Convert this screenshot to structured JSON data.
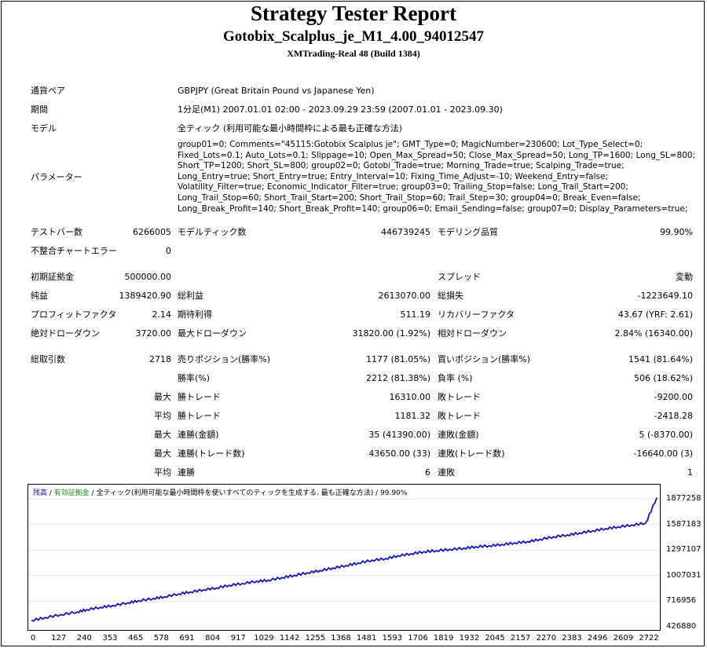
{
  "report": {
    "title": "Strategy Tester Report",
    "subtitle": "Gotobix_Scalplus_je_M1_4.00_94012547",
    "server": "XMTrading-Real 48 (Build 1384)"
  },
  "info": {
    "symbol_label": "通貨ペア",
    "symbol_value": "GBPJPY (Great Britain Pound vs Japanese Yen)",
    "period_label": "期間",
    "period_value": "1分足(M1) 2007.01.01 02:00 - 2023.09.29 23:59 (2007.01.01 - 2023.09.30)",
    "model_label": "モデル",
    "model_value": "全ティック (利用可能な最小時間枠による最も正確な方法)",
    "params_label": "パラメーター",
    "params_value": "group01=0; Comments=\"45115:Gotobix Scalplus je\"; GMT_Type=0; MagicNumber=230600; Lot_Type_Select=0; Fixed_Lots=0.1; Auto_Lots=0.1; Slippage=10; Open_Max_Spread=50; Close_Max_Spread=50; Long_TP=1600; Long_SL=800; Short_TP=1200; Short_SL=800; group02=0; Gotobi_Trade=true; Morning_Trade=true; Scalping_Trade=true; Long_Entry=true; Short_Entry=true; Entry_Interval=10; Fixing_Time_Adjust=-10; Weekend_Entry=false; Volatility_Filter=true; Economic_Indicator_Filter=true; group03=0; Trailing_Stop=false; Long_Trail_Start=200; Long_Trail_Stop=60; Short_Trail_Start=200; Short_Trail_Stop=60; Trail_Step=30; group04=0; Break_Even=false; Long_Break_Profit=140; Short_Break_Profit=140; group06=0; Email_Sending=false; group07=0; Display_Parameters=true;"
  },
  "stats": {
    "bars_label": "テストバー数",
    "bars_value": "6266005",
    "ticks_label": "モデルティック数",
    "ticks_value": "446739245",
    "quality_label": "モデリング品質",
    "quality_value": "99.90%",
    "mismatch_label": "不整合チャートエラー",
    "mismatch_value": "0",
    "deposit_label": "初期証拠金",
    "deposit_value": "500000.00",
    "spread_label": "スプレッド",
    "spread_value": "変動",
    "netprofit_label": "純益",
    "netprofit_value": "1389420.90",
    "grossprofit_label": "総利益",
    "grossprofit_value": "2613070.00",
    "grossloss_label": "総損失",
    "grossloss_value": "-1223649.10",
    "pf_label": "プロフィットファクタ",
    "pf_value": "2.14",
    "expected_label": "期待利得",
    "expected_value": "511.19",
    "recovery_label": "リカバリーファクタ",
    "recovery_value": "43.67 (YRF: 2.61)",
    "absdd_label": "絶対ドローダウン",
    "absdd_value": "3720.00",
    "maxdd_label": "最大ドローダウン",
    "maxdd_value": "31820.00 (1.92%)",
    "reldd_label": "相対ドローダウン",
    "reldd_value": "2.84% (16340.00)",
    "trades_label": "総取引数",
    "trades_value": "2718",
    "short_label": "売りポジション(勝率%)",
    "short_value": "1177 (81.05%)",
    "long_label": "買いポジション(勝率%)",
    "long_value": "1541 (81.64%)",
    "winrate_label": "勝率(%)",
    "winrate_value": "2212 (81.38%)",
    "lossrate_label": "負率 (%)",
    "lossrate_value": "506 (18.62%)",
    "max_label": "最大",
    "avg_label": "平均",
    "win_trade_label": "勝トレード",
    "loss_trade_label": "敗トレード",
    "largest_win_value": "16310.00",
    "largest_loss_value": "-9200.00",
    "avg_win_value": "1181.32",
    "avg_loss_value": "-2418.28",
    "consec_wins_amount_label": "連勝(金額)",
    "consec_wins_amount_value": "35 (41390.00)",
    "consec_losses_amount_label": "連敗(金額)",
    "consec_losses_amount_value": "5 (-8370.00)",
    "consec_profit_label": "連勝(トレード数)",
    "consec_profit_value": "43650.00 (33)",
    "consec_loss_label": "連敗(トレード数)",
    "consec_loss_value": "-16640.00 (3)",
    "avg_consec_wins_label": "連勝",
    "avg_consec_wins_value": "6",
    "avg_consec_losses_label": "連敗",
    "avg_consec_losses_value": "1"
  },
  "chart_data": {
    "type": "line",
    "legend": {
      "balance": "残高",
      "sep1": " / ",
      "equity": "有効証拠金",
      "sep2": " / ",
      "model": "全ティック(利用可能な最小時間枠を使いすべてのティックを生成する. 最も正確な方法)",
      "quality": " / 99.90%"
    },
    "line_color": "#1414b4",
    "x_ticks": [
      "0",
      "127",
      "240",
      "353",
      "465",
      "578",
      "691",
      "804",
      "917",
      "1029",
      "1142",
      "1255",
      "1368",
      "1481",
      "1593",
      "1706",
      "1819",
      "1932",
      "2045",
      "2157",
      "2270",
      "2383",
      "2496",
      "2609",
      "2722"
    ],
    "y_ticks": [
      "1877258",
      "1587183",
      "1297107",
      "1007031",
      "716956",
      "426880"
    ],
    "xlim": [
      0,
      2718
    ],
    "ylim": [
      426880,
      1877258
    ],
    "series": [
      {
        "x": [
          0,
          60,
          127,
          200,
          240,
          300,
          353,
          420,
          465,
          530,
          578,
          640,
          691,
          750,
          804,
          860,
          917,
          980,
          1029,
          1090,
          1142,
          1200,
          1255,
          1310,
          1368,
          1420,
          1481,
          1540,
          1593,
          1650,
          1706,
          1760,
          1819,
          1880,
          1932,
          1990,
          2045,
          2100,
          2157,
          2210,
          2270,
          2330,
          2383,
          2440,
          2496,
          2550,
          2609,
          2670,
          2718
        ],
        "y": [
          500000,
          532000,
          565000,
          596000,
          622000,
          648000,
          668000,
          700000,
          722000,
          748000,
          768000,
          800000,
          822000,
          848000,
          868000,
          898000,
          918000,
          944000,
          955000,
          985000,
          1010000,
          1040000,
          1065000,
          1093000,
          1122000,
          1150000,
          1182000,
          1200000,
          1232000,
          1255000,
          1278000,
          1290000,
          1305000,
          1318000,
          1335000,
          1345000,
          1360000,
          1378000,
          1392000,
          1418000,
          1447000,
          1468000,
          1490000,
          1515000,
          1540000,
          1560000,
          1580000,
          1602000,
          1889420
        ]
      }
    ]
  }
}
